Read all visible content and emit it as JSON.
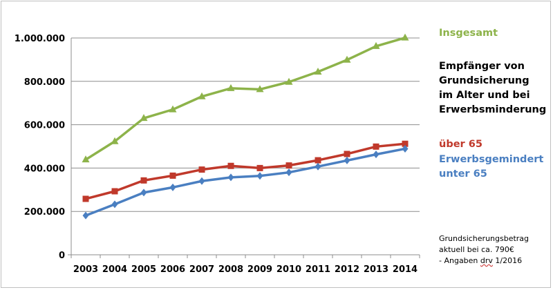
{
  "chart_data": {
    "type": "line",
    "categories": [
      "2003",
      "2004",
      "2005",
      "2006",
      "2007",
      "2008",
      "2009",
      "2010",
      "2011",
      "2012",
      "2013",
      "2014"
    ],
    "series": [
      {
        "name": "Insgesamt",
        "color": "#8db34a",
        "marker": "triangle",
        "values": [
          439000,
          523000,
          630000,
          670000,
          730000,
          768000,
          763000,
          797000,
          844000,
          899000,
          962000,
          1001000
        ]
      },
      {
        "name": "über 65",
        "color": "#c0392b",
        "marker": "square",
        "values": [
          258000,
          293000,
          343000,
          365000,
          393000,
          410000,
          400000,
          412000,
          436000,
          465000,
          499000,
          512000
        ]
      },
      {
        "name": "Erwerbsgemindert unter 65",
        "color": "#4a7fc1",
        "marker": "diamond",
        "values": [
          181000,
          233000,
          287000,
          311000,
          340000,
          357000,
          364000,
          380000,
          407000,
          435000,
          463000,
          489000
        ]
      }
    ],
    "title": "Empfänger von Grundsicherung im Alter und bei Erwerbsminderung",
    "ylim": [
      0,
      1000000
    ],
    "yticks": [
      0,
      200000,
      400000,
      600000,
      800000,
      1000000
    ],
    "ytick_labels": [
      "0",
      "200.000",
      "400.000",
      "600.000",
      "800.000",
      "1.000.000"
    ],
    "grid": true,
    "legend_position": "right"
  },
  "legend": {
    "total": "Insgesamt",
    "over65": "über 65",
    "disabled_line1": "Erwerbsgemindert",
    "disabled_line2": "unter 65"
  },
  "subtitle": {
    "line1": "Empfänger von",
    "line2": "Grundsicherung",
    "line3": "im Alter und bei",
    "line4": "Erwerbsminderung"
  },
  "note": {
    "line1": "Grundsicherungsbetrag",
    "line2": "aktuell bei ca. 790€",
    "line3_prefix": "- Angaben ",
    "line3_source": "drv",
    "line3_suffix": " 1/2016"
  }
}
